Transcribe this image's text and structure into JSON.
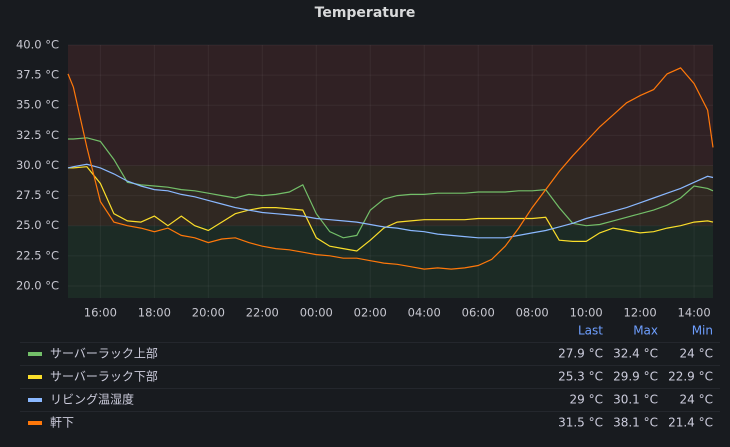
{
  "chart_data": {
    "type": "line",
    "title": "Temperature",
    "x": [
      "14:48",
      "15:00",
      "15:30",
      "16:00",
      "16:30",
      "17:00",
      "17:30",
      "18:00",
      "18:30",
      "19:00",
      "19:30",
      "20:00",
      "20:30",
      "21:00",
      "21:30",
      "22:00",
      "22:30",
      "23:00",
      "23:30",
      "00:00",
      "00:30",
      "01:00",
      "01:30",
      "02:00",
      "02:30",
      "03:00",
      "03:30",
      "04:00",
      "04:30",
      "05:00",
      "05:30",
      "06:00",
      "06:30",
      "07:00",
      "07:30",
      "08:00",
      "08:30",
      "09:00",
      "09:30",
      "10:00",
      "10:30",
      "11:00",
      "11:30",
      "12:00",
      "12:30",
      "13:00",
      "13:30",
      "14:00",
      "14:30",
      "14:42"
    ],
    "xlim": [
      "14:48",
      "14:42"
    ],
    "xticks": [
      "16:00",
      "18:00",
      "20:00",
      "22:00",
      "00:00",
      "02:00",
      "04:00",
      "06:00",
      "08:00",
      "10:00",
      "12:00",
      "14:00"
    ],
    "ylim": [
      19,
      40
    ],
    "yticks": [
      {
        "value": 20,
        "label": "20.0 °C"
      },
      {
        "value": 22.5,
        "label": "22.5 °C"
      },
      {
        "value": 25,
        "label": "25.0 °C"
      },
      {
        "value": 27.5,
        "label": "27.5 °C"
      },
      {
        "value": 30,
        "label": "30.0 °C"
      },
      {
        "value": 32.5,
        "label": "32.5 °C"
      },
      {
        "value": 35,
        "label": "35.0 °C"
      },
      {
        "value": 37.5,
        "label": "37.5 °C"
      },
      {
        "value": 40,
        "label": "40.0 °C"
      }
    ],
    "thresholds": [
      {
        "from": 19,
        "to": 25,
        "color": "#1c2b25"
      },
      {
        "from": 25,
        "to": 30,
        "color": "#302822"
      },
      {
        "from": 30,
        "to": 40,
        "color": "#302124"
      }
    ],
    "legend_columns": [
      "Last",
      "Max",
      "Min"
    ],
    "series": [
      {
        "name": "サーバーラック上部",
        "color": "#73bf69",
        "values": [
          32.2,
          32.2,
          32.3,
          32.0,
          30.5,
          28.6,
          28.4,
          28.3,
          28.2,
          28.0,
          27.9,
          27.7,
          27.5,
          27.3,
          27.6,
          27.5,
          27.6,
          27.8,
          28.4,
          26.0,
          24.5,
          24.0,
          24.2,
          26.3,
          27.2,
          27.5,
          27.6,
          27.6,
          27.7,
          27.7,
          27.7,
          27.8,
          27.8,
          27.8,
          27.9,
          27.9,
          28.0,
          26.5,
          25.2,
          25.0,
          25.1,
          25.4,
          25.7,
          26.0,
          26.3,
          26.7,
          27.3,
          28.3,
          28.1,
          27.9
        ],
        "stats": [
          {
            "value": 27.9,
            "label": "27.9 °C"
          },
          {
            "value": 32.4,
            "label": "32.4 °C"
          },
          {
            "value": 24,
            "label": "24 °C"
          }
        ]
      },
      {
        "name": "サーバーラック下部",
        "color": "#fade2a",
        "values": [
          29.8,
          29.8,
          29.9,
          28.5,
          26.0,
          25.4,
          25.3,
          25.8,
          25.0,
          25.8,
          25.0,
          24.6,
          25.3,
          26.0,
          26.3,
          26.5,
          26.5,
          26.4,
          26.3,
          24.0,
          23.3,
          23.1,
          22.9,
          23.8,
          24.8,
          25.3,
          25.4,
          25.5,
          25.5,
          25.5,
          25.5,
          25.6,
          25.6,
          25.6,
          25.6,
          25.6,
          25.7,
          23.8,
          23.7,
          23.7,
          24.4,
          24.8,
          24.6,
          24.4,
          24.5,
          24.8,
          25.0,
          25.3,
          25.4,
          25.3
        ],
        "stats": [
          {
            "value": 25.3,
            "label": "25.3 °C"
          },
          {
            "value": 29.9,
            "label": "29.9 °C"
          },
          {
            "value": 22.9,
            "label": "22.9 °C"
          }
        ]
      },
      {
        "name": "リビング温湿度",
        "color": "#8ab8ff",
        "values": [
          29.8,
          29.9,
          30.1,
          29.8,
          29.3,
          28.7,
          28.3,
          28.0,
          27.9,
          27.6,
          27.4,
          27.1,
          26.8,
          26.5,
          26.3,
          26.1,
          26.0,
          25.9,
          25.8,
          25.6,
          25.5,
          25.4,
          25.3,
          25.1,
          24.9,
          24.8,
          24.6,
          24.5,
          24.3,
          24.2,
          24.1,
          24.0,
          24.0,
          24.0,
          24.2,
          24.4,
          24.6,
          24.9,
          25.2,
          25.6,
          25.9,
          26.2,
          26.5,
          26.9,
          27.3,
          27.7,
          28.1,
          28.6,
          29.1,
          29.0
        ],
        "stats": [
          {
            "value": 29,
            "label": "29 °C"
          },
          {
            "value": 30.1,
            "label": "30.1 °C"
          },
          {
            "value": 24,
            "label": "24 °C"
          }
        ]
      },
      {
        "name": "軒下",
        "color": "#ff780a",
        "values": [
          37.6,
          36.5,
          31.5,
          27.0,
          25.3,
          25.0,
          24.8,
          24.5,
          24.8,
          24.2,
          24.0,
          23.6,
          23.9,
          24.0,
          23.6,
          23.3,
          23.1,
          23.0,
          22.8,
          22.6,
          22.5,
          22.3,
          22.3,
          22.1,
          21.9,
          21.8,
          21.6,
          21.4,
          21.5,
          21.4,
          21.5,
          21.7,
          22.2,
          23.3,
          24.8,
          26.5,
          28.0,
          29.5,
          30.8,
          32.0,
          33.2,
          34.2,
          35.2,
          35.8,
          36.3,
          37.6,
          38.1,
          36.8,
          34.6,
          31.5
        ],
        "stats": [
          {
            "value": 31.5,
            "label": "31.5 °C"
          },
          {
            "value": 38.1,
            "label": "38.1 °C"
          },
          {
            "value": 21.4,
            "label": "21.4 °C"
          }
        ]
      }
    ]
  }
}
